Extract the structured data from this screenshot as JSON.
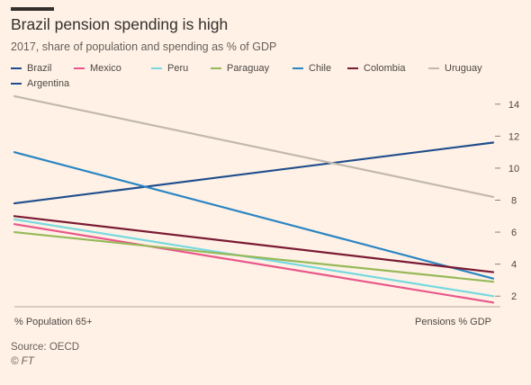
{
  "header": {
    "title": "Brazil pension spending is high",
    "subtitle": "2017, share of population and spending as % of GDP"
  },
  "chart_data": {
    "type": "line",
    "categories": [
      "% Population 65+",
      "Pensions % GDP"
    ],
    "ylim": [
      1,
      15
    ],
    "yticks": [
      2,
      4,
      6,
      8,
      10,
      12,
      14
    ],
    "y_axis_side": "right",
    "grid": false,
    "legend_placement": "top",
    "series": [
      {
        "name": "Brazil",
        "color": "#1f4e8c",
        "values": [
          7.8,
          11.6
        ]
      },
      {
        "name": "Mexico",
        "color": "#e8588b",
        "values": [
          6.5,
          1.6
        ]
      },
      {
        "name": "Peru",
        "color": "#76d9e0",
        "values": [
          6.8,
          2.0
        ]
      },
      {
        "name": "Paraguay",
        "color": "#96b959",
        "values": [
          6.0,
          2.9
        ]
      },
      {
        "name": "Chile",
        "color": "#2a85c3",
        "values": [
          11.0,
          3.1
        ]
      },
      {
        "name": "Colombia",
        "color": "#7a1a34",
        "values": [
          7.0,
          3.5
        ]
      },
      {
        "name": "Uruguay",
        "color": "#c2b8ad",
        "values": [
          14.5,
          8.2
        ]
      },
      {
        "name": "Argentina",
        "color": "#1f4e8c",
        "values": [
          null,
          null
        ]
      }
    ]
  },
  "footer": {
    "source": "Source: OECD",
    "brand": "© FT"
  }
}
